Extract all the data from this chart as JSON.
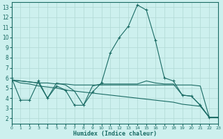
{
  "xlabel": "Humidex (Indice chaleur)",
  "bg_color": "#cdf0ee",
  "grid_color": "#b0d8d4",
  "line_color": "#1a6b64",
  "xlim": [
    0,
    23
  ],
  "ylim": [
    1.5,
    13.5
  ],
  "xticks": [
    0,
    1,
    2,
    3,
    4,
    5,
    6,
    7,
    8,
    9,
    10,
    11,
    12,
    13,
    14,
    15,
    16,
    17,
    18,
    19,
    20,
    21,
    22,
    23
  ],
  "yticks": [
    2,
    3,
    4,
    5,
    6,
    7,
    8,
    9,
    10,
    11,
    12,
    13
  ],
  "lines": [
    {
      "x": [
        0,
        1,
        2,
        3,
        4,
        5,
        6,
        7,
        8,
        9,
        10,
        11,
        12,
        13,
        14,
        15,
        16,
        17,
        18,
        19,
        20,
        21,
        22,
        23
      ],
      "y": [
        6.0,
        3.8,
        3.8,
        5.7,
        4.0,
        5.2,
        4.8,
        3.3,
        3.3,
        4.6,
        5.5,
        8.5,
        10.0,
        11.1,
        13.2,
        12.7,
        9.7,
        6.0,
        5.7,
        4.3,
        4.2,
        3.3,
        2.1,
        2.1
      ],
      "marker": "+"
    },
    {
      "x": [
        0,
        1,
        2,
        3,
        4,
        5,
        6,
        7,
        8,
        9,
        10,
        11,
        12,
        13,
        14,
        15,
        16,
        17,
        18,
        19,
        20,
        21,
        22,
        23
      ],
      "y": [
        5.8,
        5.7,
        5.6,
        5.5,
        5.5,
        5.4,
        5.4,
        5.3,
        5.3,
        5.3,
        5.3,
        5.3,
        5.3,
        5.3,
        5.3,
        5.3,
        5.3,
        5.3,
        5.3,
        5.3,
        5.3,
        5.2,
        2.1,
        2.1
      ],
      "marker": null
    },
    {
      "x": [
        0,
        1,
        2,
        3,
        4,
        5,
        6,
        7,
        8,
        9,
        10,
        11,
        12,
        13,
        14,
        15,
        16,
        17,
        18,
        19,
        20,
        21,
        22,
        23
      ],
      "y": [
        5.8,
        5.5,
        5.4,
        5.2,
        5.1,
        5.0,
        4.8,
        4.7,
        4.6,
        4.5,
        4.4,
        4.3,
        4.2,
        4.1,
        4.0,
        3.9,
        3.8,
        3.7,
        3.6,
        3.4,
        3.3,
        3.2,
        2.1,
        2.1
      ],
      "marker": null
    },
    {
      "x": [
        0,
        1,
        2,
        3,
        4,
        5,
        6,
        7,
        8,
        9,
        10,
        11,
        12,
        13,
        14,
        15,
        16,
        17,
        18,
        19,
        20,
        21,
        22,
        23
      ],
      "y": [
        5.8,
        5.7,
        5.6,
        5.5,
        4.0,
        5.5,
        5.3,
        4.7,
        3.3,
        5.2,
        5.4,
        5.4,
        5.4,
        5.4,
        5.4,
        5.7,
        5.5,
        5.4,
        5.4,
        4.3,
        4.2,
        3.3,
        2.1,
        2.1
      ],
      "marker": null
    }
  ]
}
